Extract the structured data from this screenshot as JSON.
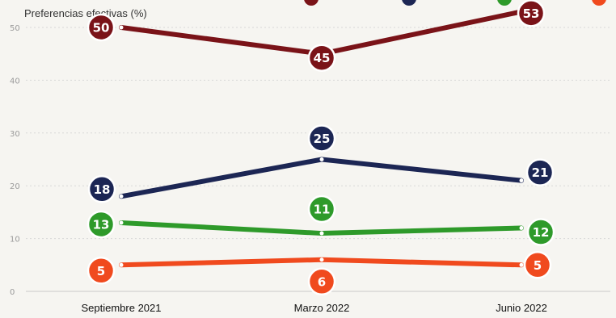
{
  "chart_data": {
    "type": "line",
    "title": "Preferencias efectivas (%)",
    "categories": [
      "Septiembre 2021",
      "Marzo 2022",
      "Junio 2022"
    ],
    "ylim": [
      0,
      50
    ],
    "yticks": [
      0,
      10,
      20,
      30,
      40,
      50
    ],
    "grid": true,
    "series": [
      {
        "color": "#7a1318",
        "values": [
          50,
          45,
          53
        ]
      },
      {
        "color": "#1c2654",
        "values": [
          18,
          25,
          21
        ]
      },
      {
        "color": "#2e9a2a",
        "values": [
          13,
          11,
          12
        ]
      },
      {
        "color": "#f04a1e",
        "values": [
          5,
          6,
          5
        ]
      }
    ]
  }
}
